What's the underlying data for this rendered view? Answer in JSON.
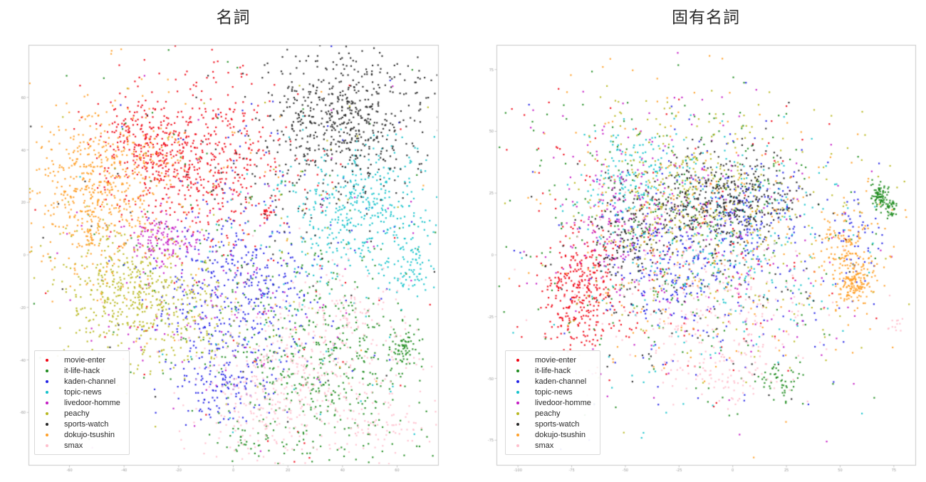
{
  "figure": {
    "background": "#ffffff"
  },
  "chart_data": [
    {
      "type": "scatter",
      "title": "名詞",
      "legend_position": "lower left",
      "xlim": [
        -75,
        75
      ],
      "ylim": [
        -80,
        80
      ],
      "x_ticks": [
        -60,
        -40,
        -20,
        0,
        20,
        40,
        60
      ],
      "y_ticks": [
        -60,
        -40,
        -20,
        0,
        20,
        40,
        60
      ],
      "style": {
        "frame_color": "#c9c9c9",
        "tick_color": "#999999",
        "marker_px": 2.2
      },
      "series": [
        {
          "name": "movie-enter",
          "color": "#f00514",
          "clusters": [
            {
              "x": -15,
              "y": 37,
              "sx": 16,
              "sy": 15,
              "n": 620
            },
            {
              "x": -32,
              "y": 45,
              "sx": 8,
              "sy": 7,
              "n": 120
            },
            {
              "x": 12,
              "y": 16,
              "sx": 1.5,
              "sy": 1.5,
              "n": 20
            },
            {
              "x": 5,
              "y": -8,
              "sx": 40,
              "sy": 35,
              "n": 60
            }
          ]
        },
        {
          "name": "it-life-hack",
          "color": "#1e8b1e",
          "clusters": [
            {
              "x": 32,
              "y": -42,
              "sx": 17,
              "sy": 18,
              "n": 420
            },
            {
              "x": 62,
              "y": -35,
              "sx": 3,
              "sy": 5,
              "n": 70
            },
            {
              "x": 10,
              "y": -20,
              "sx": 30,
              "sy": 25,
              "n": 120
            },
            {
              "x": 6,
              "y": -70,
              "sx": 8,
              "sy": 5,
              "n": 40
            },
            {
              "x": 0,
              "y": 20,
              "sx": 45,
              "sy": 30,
              "n": 60
            }
          ]
        },
        {
          "name": "kaden-channel",
          "color": "#2222e6",
          "clusters": [
            {
              "x": 0,
              "y": -18,
              "sx": 15,
              "sy": 18,
              "n": 420
            },
            {
              "x": -5,
              "y": -52,
              "sx": 8,
              "sy": 6,
              "n": 100
            },
            {
              "x": 5,
              "y": 10,
              "sx": 35,
              "sy": 30,
              "n": 100
            }
          ]
        },
        {
          "name": "topic-news",
          "color": "#14c2cb",
          "clusters": [
            {
              "x": 48,
              "y": 18,
              "sx": 14,
              "sy": 13,
              "n": 430
            },
            {
              "x": 65,
              "y": -5,
              "sx": 5,
              "sy": 5,
              "n": 70
            },
            {
              "x": 20,
              "y": -20,
              "sx": 35,
              "sy": 28,
              "n": 60
            }
          ]
        },
        {
          "name": "livedoor-homme",
          "color": "#c41ac4",
          "clusters": [
            {
              "x": -27,
              "y": 5,
              "sx": 6,
              "sy": 5,
              "n": 130
            },
            {
              "x": -15,
              "y": -15,
              "sx": 25,
              "sy": 20,
              "n": 90
            },
            {
              "x": 10,
              "y": 0,
              "sx": 40,
              "sy": 30,
              "n": 40
            }
          ]
        },
        {
          "name": "peachy",
          "color": "#b8b821",
          "clusters": [
            {
              "x": -39,
              "y": -13,
              "sx": 13,
              "sy": 12,
              "n": 420
            },
            {
              "x": -20,
              "y": -28,
              "sx": 12,
              "sy": 10,
              "n": 120
            },
            {
              "x": 0,
              "y": 0,
              "sx": 40,
              "sy": 32,
              "n": 60
            }
          ]
        },
        {
          "name": "sports-watch",
          "color": "#262626",
          "clusters": [
            {
              "x": 41,
              "y": 53,
              "sx": 15,
              "sy": 13,
              "n": 560
            },
            {
              "x": 25,
              "y": 30,
              "sx": 20,
              "sy": 15,
              "n": 80
            },
            {
              "x": 0,
              "y": 10,
              "sx": 40,
              "sy": 30,
              "n": 40
            }
          ]
        },
        {
          "name": "dokujo-tsushin",
          "color": "#ffa028",
          "clusters": [
            {
              "x": -51,
              "y": 24,
              "sx": 12,
              "sy": 15,
              "n": 520
            },
            {
              "x": -35,
              "y": 38,
              "sx": 10,
              "sy": 6,
              "n": 80
            },
            {
              "x": -10,
              "y": 5,
              "sx": 35,
              "sy": 28,
              "n": 60
            }
          ]
        },
        {
          "name": "smax",
          "color": "#ffbfcd",
          "clusters": [
            {
              "x": 27,
              "y": -45,
              "sx": 20,
              "sy": 17,
              "n": 420
            },
            {
              "x": 8,
              "y": -62,
              "sx": 12,
              "sy": 8,
              "n": 90
            },
            {
              "x": 42,
              "y": -20,
              "sx": 8,
              "sy": 8,
              "n": 60
            },
            {
              "x": 55,
              "y": -65,
              "sx": 8,
              "sy": 5,
              "n": 50
            }
          ]
        }
      ]
    },
    {
      "type": "scatter",
      "title": "固有名詞",
      "legend_position": "lower left",
      "xlim": [
        -110,
        85
      ],
      "ylim": [
        -85,
        85
      ],
      "x_ticks": [
        -100,
        -75,
        -50,
        -25,
        0,
        25,
        50,
        75
      ],
      "y_ticks": [
        -75,
        -50,
        -25,
        0,
        25,
        50,
        75
      ],
      "style": {
        "frame_color": "#c9c9c9",
        "tick_color": "#999999",
        "marker_px": 2.2
      },
      "series": [
        {
          "name": "movie-enter",
          "color": "#f00514",
          "clusters": [
            {
              "x": -69,
              "y": -15,
              "sx": 9,
              "sy": 11,
              "n": 330
            },
            {
              "x": -25,
              "y": 5,
              "sx": 38,
              "sy": 30,
              "n": 150
            },
            {
              "x": -78,
              "y": 42,
              "sx": 15,
              "sy": 14,
              "n": 12
            }
          ]
        },
        {
          "name": "it-life-hack",
          "color": "#1e8b1e",
          "clusters": [
            {
              "x": 68,
              "y": 24,
              "sx": 2,
              "sy": 2.5,
              "n": 80
            },
            {
              "x": 74,
              "y": 19,
              "sx": 1.5,
              "sy": 2,
              "n": 35
            },
            {
              "x": 23,
              "y": -51,
              "sx": 5,
              "sy": 4,
              "n": 50
            },
            {
              "x": -18,
              "y": 5,
              "sx": 41,
              "sy": 30,
              "n": 300
            },
            {
              "x": -66,
              "y": 47,
              "sx": 20,
              "sy": 12,
              "n": 15
            }
          ]
        },
        {
          "name": "kaden-channel",
          "color": "#2222e6",
          "clusters": [
            {
              "x": -30,
              "y": -6,
              "sx": 13,
              "sy": 16,
              "n": 150
            },
            {
              "x": 8,
              "y": 16,
              "sx": 11,
              "sy": 10,
              "n": 120
            },
            {
              "x": -12,
              "y": 0,
              "sx": 38,
              "sy": 28,
              "n": 200
            },
            {
              "x": 57,
              "y": 5,
              "sx": 6,
              "sy": 10,
              "n": 50
            }
          ]
        },
        {
          "name": "topic-news",
          "color": "#14c2cb",
          "clusters": [
            {
              "x": -48,
              "y": 30,
              "sx": 11,
              "sy": 11,
              "n": 150
            },
            {
              "x": 0,
              "y": 14,
              "sx": 27,
              "sy": 18,
              "n": 200
            },
            {
              "x": -15,
              "y": -10,
              "sx": 38,
              "sy": 26,
              "n": 100
            }
          ]
        },
        {
          "name": "livedoor-homme",
          "color": "#c41ac4",
          "clusters": [
            {
              "x": -52,
              "y": 16,
              "sx": 13,
              "sy": 16,
              "n": 150
            },
            {
              "x": -12,
              "y": 6,
              "sx": 38,
              "sy": 28,
              "n": 180
            },
            {
              "x": -82,
              "y": 46,
              "sx": 12,
              "sy": 10,
              "n": 10
            }
          ]
        },
        {
          "name": "peachy",
          "color": "#b8b821",
          "clusters": [
            {
              "x": -25,
              "y": 27,
              "sx": 19,
              "sy": 12,
              "n": 180
            },
            {
              "x": -3,
              "y": 6,
              "sx": 38,
              "sy": 28,
              "n": 220
            },
            {
              "x": -45,
              "y": 57,
              "sx": 22,
              "sy": 8,
              "n": 15
            }
          ]
        },
        {
          "name": "sports-watch",
          "color": "#262626",
          "clusters": [
            {
              "x": -9,
              "y": 22,
              "sx": 13,
              "sy": 9,
              "n": 300
            },
            {
              "x": -50,
              "y": 7,
              "sx": 7,
              "sy": 11,
              "n": 130
            },
            {
              "x": 12,
              "y": 26,
              "sx": 11,
              "sy": 8,
              "n": 100
            },
            {
              "x": -12,
              "y": -6,
              "sx": 36,
              "sy": 26,
              "n": 120
            }
          ]
        },
        {
          "name": "dokujo-tsushin",
          "color": "#ffa028",
          "clusters": [
            {
              "x": 54,
              "y": -2,
              "sx": 7,
              "sy": 9,
              "n": 200
            },
            {
              "x": 56,
              "y": -13,
              "sx": 3,
              "sy": 3,
              "n": 80
            },
            {
              "x": -12,
              "y": 10,
              "sx": 41,
              "sy": 30,
              "n": 220
            },
            {
              "x": -60,
              "y": 60,
              "sx": 27,
              "sy": 10,
              "n": 12
            }
          ]
        },
        {
          "name": "smax",
          "color": "#ffbfcd",
          "clusters": [
            {
              "x": -8,
              "y": -26,
              "sx": 24,
              "sy": 15,
              "n": 200
            },
            {
              "x": -2,
              "y": -50,
              "sx": 11,
              "sy": 5,
              "n": 60
            },
            {
              "x": 76,
              "y": -29,
              "sx": 2,
              "sy": 2,
              "n": 12
            },
            {
              "x": -25,
              "y": 0,
              "sx": 32,
              "sy": 22,
              "n": 80
            }
          ]
        }
      ]
    }
  ]
}
